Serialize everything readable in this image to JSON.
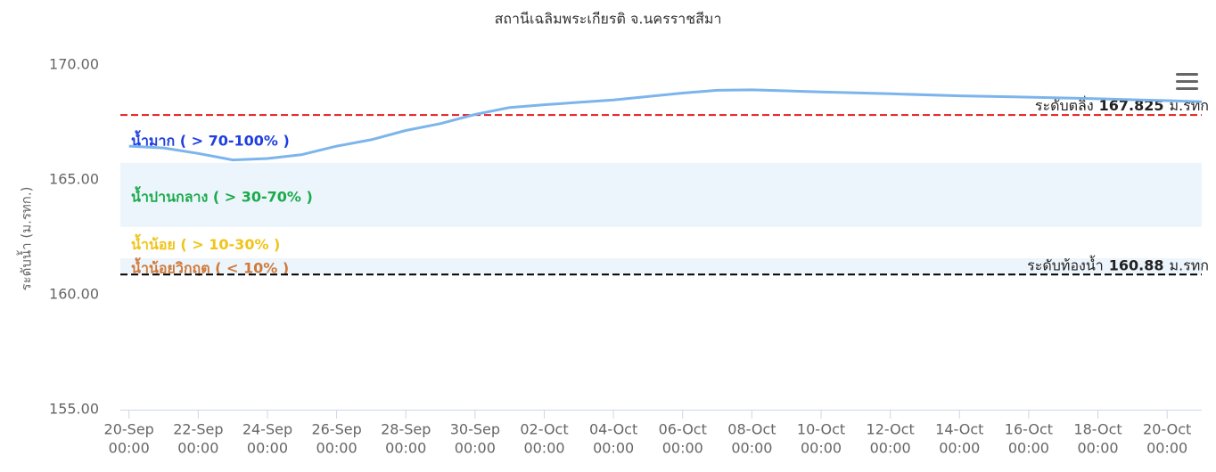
{
  "chart_data": {
    "type": "line",
    "title": "สถานีเฉลิมพระเกียรติ จ.นครราชสีมา",
    "y_label": "ระดับน้ำ (ม.รทก.)",
    "color": "#7cb5ec",
    "x": [
      "20-Sep 00:00",
      "21-Sep 00:00",
      "22-Sep 00:00",
      "23-Sep 00:00",
      "24-Sep 00:00",
      "25-Sep 00:00",
      "26-Sep 00:00",
      "27-Sep 00:00",
      "28-Sep 00:00",
      "29-Sep 00:00",
      "30-Sep 00:00",
      "01-Oct 00:00",
      "02-Oct 00:00",
      "04-Oct 00:00",
      "06-Oct 00:00",
      "07-Oct 00:00",
      "08-Oct 00:00",
      "10-Oct 00:00",
      "12-Oct 00:00",
      "14-Oct 00:00",
      "16-Oct 00:00",
      "18-Oct 00:00",
      "20-Oct 00:00",
      "21-Oct 00:00"
    ],
    "values": [
      166.47,
      166.39,
      166.15,
      165.87,
      165.93,
      166.1,
      166.47,
      166.75,
      167.15,
      167.45,
      167.85,
      168.15,
      168.27,
      168.48,
      168.78,
      168.9,
      168.92,
      168.83,
      168.75,
      168.66,
      168.6,
      168.53,
      168.45,
      168.4
    ],
    "xlim": [
      "19-Sep 18:00",
      "21-Oct 00:00"
    ],
    "xticks": [
      {
        "date": "20-Sep",
        "time": "00:00"
      },
      {
        "date": "22-Sep",
        "time": "00:00"
      },
      {
        "date": "24-Sep",
        "time": "00:00"
      },
      {
        "date": "26-Sep",
        "time": "00:00"
      },
      {
        "date": "28-Sep",
        "time": "00:00"
      },
      {
        "date": "30-Sep",
        "time": "00:00"
      },
      {
        "date": "02-Oct",
        "time": "00:00"
      },
      {
        "date": "04-Oct",
        "time": "00:00"
      },
      {
        "date": "06-Oct",
        "time": "00:00"
      },
      {
        "date": "08-Oct",
        "time": "00:00"
      },
      {
        "date": "10-Oct",
        "time": "00:00"
      },
      {
        "date": "12-Oct",
        "time": "00:00"
      },
      {
        "date": "14-Oct",
        "time": "00:00"
      },
      {
        "date": "16-Oct",
        "time": "00:00"
      },
      {
        "date": "18-Oct",
        "time": "00:00"
      },
      {
        "date": "20-Oct",
        "time": "00:00"
      }
    ],
    "ylim": [
      155,
      170
    ],
    "yticks": [
      {
        "value": 155,
        "label": "155.00"
      },
      {
        "value": 160,
        "label": "160.00"
      },
      {
        "value": 165,
        "label": "165.00"
      },
      {
        "value": 170,
        "label": "170.00"
      }
    ],
    "grid": false,
    "bands": [
      {
        "from": 165.74,
        "to": 167.825,
        "color": "#ffffff",
        "label": "น้ำมาก ( > 70-100% )",
        "label_color": "#1f3fe0"
      },
      {
        "from": 162.95,
        "to": 165.74,
        "color": "#edf5fc",
        "label": "น้ำปานกลาง ( > 30-70% )",
        "label_color": "#1aab4b"
      },
      {
        "from": 161.59,
        "to": 162.95,
        "color": "#ffffff",
        "label": "น้ำน้อย ( > 10-30% )",
        "label_color": "#f0c419"
      },
      {
        "from": 160.88,
        "to": 161.59,
        "color": "#edf5fc",
        "label": "น้ำน้อยวิกฤต ( < 10% )",
        "label_color": "#d07a3a"
      }
    ],
    "plot_lines": [
      {
        "value": 167.825,
        "color": "#e41a1c",
        "prefix": "ระดับตลิ่ง",
        "suffix": "ม.รทก"
      },
      {
        "value": 160.88,
        "color": "#000000",
        "prefix": "ระดับท้องน้ำ",
        "suffix": "ม.รทก"
      }
    ]
  }
}
